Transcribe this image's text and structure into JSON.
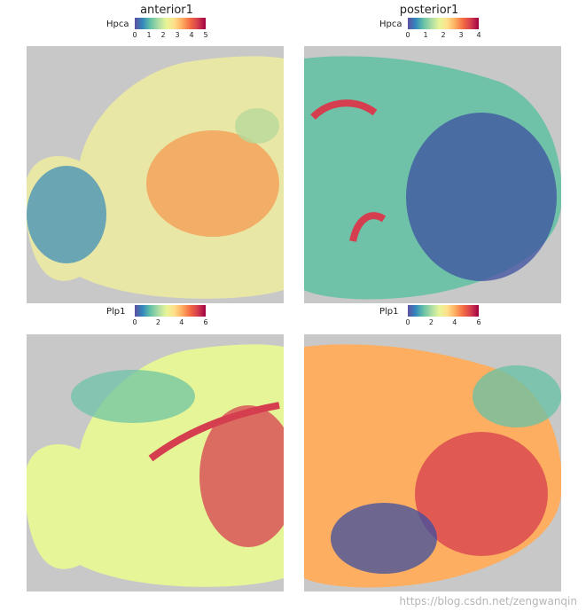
{
  "titles": {
    "anterior": "anterior1",
    "posterior": "posterior1"
  },
  "legends": [
    {
      "gene": "Hpca",
      "ticks": [
        "0",
        "1",
        "2",
        "3",
        "4",
        "5"
      ]
    },
    {
      "gene": "Hpca",
      "ticks": [
        "0",
        "1",
        "2",
        "3",
        "4"
      ]
    },
    {
      "gene": "Plp1",
      "ticks": [
        "0",
        "2",
        "4",
        "6"
      ]
    },
    {
      "gene": "Plp1",
      "ticks": [
        "0",
        "2",
        "4",
        "6"
      ]
    }
  ],
  "watermark": "https://blog.csdn.net/zengwanqin"
}
